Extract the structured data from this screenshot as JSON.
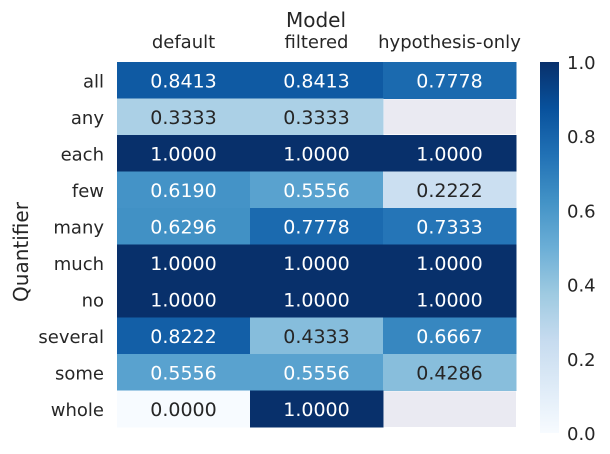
{
  "chart_data": {
    "type": "heatmap",
    "title": "Model",
    "xlabel": "Model",
    "ylabel": "Quantifier",
    "columns": [
      "default",
      "filtered",
      "hypothesis-only"
    ],
    "rows": [
      "all",
      "any",
      "each",
      "few",
      "many",
      "much",
      "no",
      "several",
      "some",
      "whole"
    ],
    "values": [
      [
        0.8413,
        0.8413,
        0.7778
      ],
      [
        0.3333,
        0.3333,
        null
      ],
      [
        1.0,
        1.0,
        1.0
      ],
      [
        0.619,
        0.5556,
        0.2222
      ],
      [
        0.6296,
        0.7778,
        0.7333
      ],
      [
        1.0,
        1.0,
        1.0
      ],
      [
        1.0,
        1.0,
        1.0
      ],
      [
        0.8222,
        0.4333,
        0.6667
      ],
      [
        0.5556,
        0.5556,
        0.4286
      ],
      [
        0.0,
        1.0,
        null
      ]
    ],
    "value_format": "4 decimals",
    "colormap": "Blues",
    "colorbar": {
      "range": [
        0.0,
        1.0
      ],
      "ticks": [
        "0.0",
        "0.2",
        "0.4",
        "0.6",
        "0.8",
        "1.0"
      ]
    },
    "missing_cell_color": "#eaeaf2",
    "grid": true
  }
}
